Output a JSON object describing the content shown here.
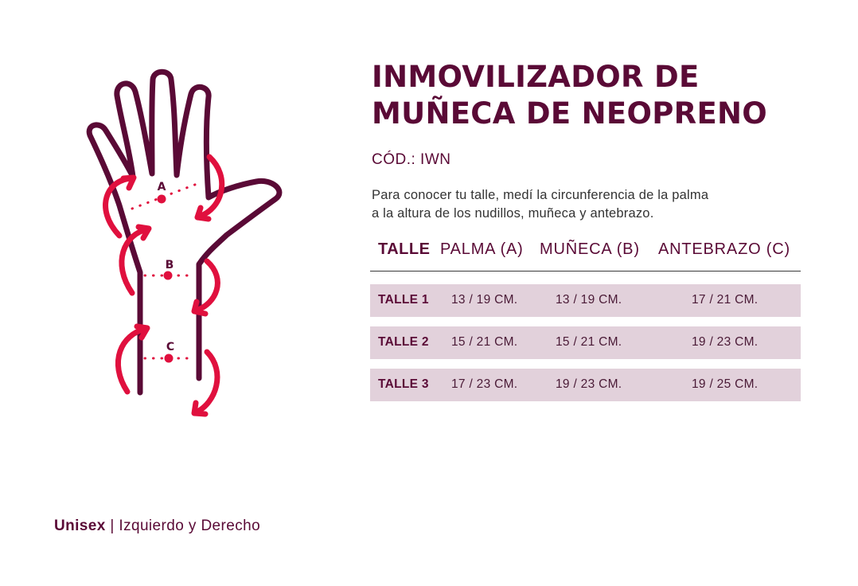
{
  "product": {
    "title_line1": "INMOVILIZADOR DE",
    "title_line2": "MUÑECA DE NEOPRENO",
    "code": "CÓD.: IWN",
    "instructions_line1": "Para conocer tu talle, medí la circunferencia de la palma",
    "instructions_line2": "a la altura de los nudillos, muñeca y antebrazo."
  },
  "diagram": {
    "label_a": "A",
    "label_b": "B",
    "label_c": "C",
    "outline_color": "#5a0a36",
    "arrow_color": "#e0103e",
    "icon": "hand-measurement-icon"
  },
  "table": {
    "headers": {
      "talle": "TALLE",
      "palma": "PALMA (A)",
      "muneca": "MUÑECA (B)",
      "antebrazo": "ANTEBRAZO (C)"
    },
    "rows": [
      {
        "talle": "TALLE 1",
        "palma": "13 / 19 CM.",
        "muneca": "13 / 19 CM.",
        "antebrazo": "17 / 21 CM."
      },
      {
        "talle": "TALLE 2",
        "palma": "15 / 21 CM.",
        "muneca": "15 / 21 CM.",
        "antebrazo": "19 / 23 CM."
      },
      {
        "talle": "TALLE 3",
        "palma": "17 / 23 CM.",
        "muneca": "19 / 23 CM.",
        "antebrazo": "19 / 25 CM."
      }
    ],
    "row_color": "#e2d1db"
  },
  "footer": {
    "unisex": "Unisex",
    "separator": " | ",
    "sides": "Izquierdo y Derecho"
  }
}
